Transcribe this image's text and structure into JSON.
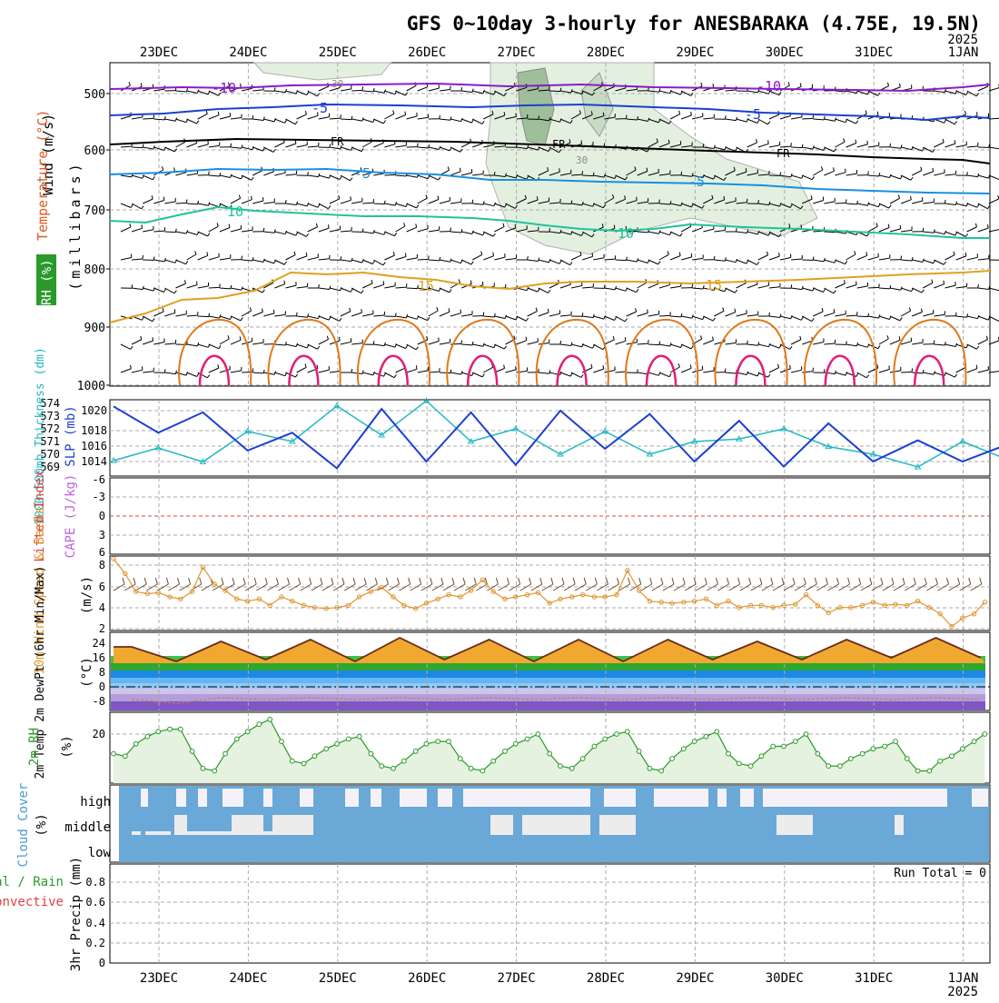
{
  "title": "GFS 0~10day 3-hourly for ANESBARAKA (4.75E, 19.5N)",
  "year_label": "2025",
  "date_labels": [
    "23DEC",
    "24DEC",
    "25DEC",
    "26DEC",
    "27DEC",
    "28DEC",
    "29DEC",
    "30DEC",
    "31DEC",
    "1JAN"
  ],
  "time_range": {
    "start_day": 0,
    "end_day": 10,
    "step_hours": 3
  },
  "colors": {
    "purple": "#8a1ac8",
    "blue": "#1c3fd1",
    "black": "#000000",
    "lightblue": "#1a8fe0",
    "teal": "#1ec39a",
    "orange": "#e0a020",
    "darkorange": "#e07818",
    "magenta": "#e0207a",
    "cyan": "#22b8c0",
    "wind_orange": "#e09530",
    "rh_green": "#2a9a2a",
    "cloud_blue": "#6aa8d8",
    "cloud_white": "#f4f2f8",
    "grid": "#aaaaaa"
  },
  "panels": {
    "upper": {
      "ylabel_unit": "(millibars)",
      "ylabel_wind": "Wind (m/s)",
      "ylabel_temp": "Temperature (°C)",
      "ylabel_rh": "RH (%)",
      "pressure_ticks": [
        "500",
        "600",
        "700",
        "800",
        "900",
        "1000"
      ],
      "isotherm_labels": [
        "-10",
        "-5",
        "FR",
        "-5",
        "10",
        "10",
        "15"
      ],
      "rh_label": "30"
    },
    "slp": {
      "ylabel_left": "1000~500mb Thickness (dm)",
      "ylabel_right": "SLP (mb)",
      "thickness_ticks": [
        "574",
        "573",
        "572",
        "571",
        "570",
        "569"
      ],
      "slp_ticks": [
        "1020",
        "1018",
        "1016",
        "1014"
      ]
    },
    "li": {
      "ylabel_li": "Lifted Index",
      "ylabel_cape": "CAPE (J/kg)",
      "ticks": [
        "-6",
        "-3",
        "0",
        "3",
        "6"
      ]
    },
    "wind10": {
      "ylabel": "10m Wind Speed & Barbs",
      "unit": "(m/s)",
      "ticks": [
        "8",
        "6",
        "4",
        "2"
      ]
    },
    "temp2m": {
      "ylabel": "2m Temp 2m DewPt (6hr Min/Max)",
      "unit": "(°C)",
      "ticks": [
        "24",
        "16",
        "8",
        "0",
        "-8"
      ]
    },
    "rh2m": {
      "ylabel": "2m RH",
      "unit": "(%)",
      "ticks": [
        "20"
      ]
    },
    "cloud": {
      "ylabel": "Cloud Cover",
      "unit": "(%)",
      "levels": [
        "high",
        "middle",
        "low"
      ]
    },
    "precip": {
      "ylabel_total": "Total / Rain",
      "ylabel_conv": "Convective",
      "ylabel_main": "3hr Precip (mm)",
      "ticks": [
        "0.8",
        "0.6",
        "0.4",
        "0.2",
        "0"
      ],
      "run_total": "Run Total = 0"
    }
  },
  "chart_data": [
    {
      "type": "line",
      "title": "10m Wind Speed",
      "ylabel": "10m Wind Speed & Barbs (m/s)",
      "ylim": [
        2,
        9
      ],
      "x_days": [
        0.0,
        0.13,
        0.25,
        0.38,
        0.5,
        0.63,
        0.75,
        0.88,
        1.0,
        1.13,
        1.25,
        1.38,
        1.5,
        1.63,
        1.75,
        1.88,
        2.0,
        2.13,
        2.25,
        2.38,
        2.5,
        2.63,
        2.75,
        2.88,
        3.0,
        3.13,
        3.25,
        3.38,
        3.5,
        3.63,
        3.75,
        3.88,
        4.0,
        4.13,
        4.25,
        4.38,
        4.5,
        4.63,
        4.75,
        4.88,
        5.0,
        5.13,
        5.25,
        5.38,
        5.5,
        5.63,
        5.75,
        5.88,
        6.0,
        6.13,
        6.25,
        6.38,
        6.5,
        6.63,
        6.75,
        6.88,
        7.0,
        7.13,
        7.25,
        7.38,
        7.5,
        7.63,
        7.75,
        7.88,
        8.0,
        8.13,
        8.25,
        8.38,
        8.5,
        8.63,
        8.75,
        8.88,
        9.0,
        9.13,
        9.25,
        9.38,
        9.5,
        9.63,
        9.75
      ],
      "series": [
        {
          "values": [
            8.6,
            7.2,
            5.5,
            5.3,
            5.4,
            5.0,
            4.8,
            5.5,
            7.8,
            6.2,
            5.6,
            4.8,
            4.6,
            4.8,
            4.2,
            5.0,
            4.6,
            4.2,
            4.0,
            3.9,
            4.0,
            4.2,
            5.0,
            5.5,
            5.9,
            5.0,
            4.2,
            3.9,
            4.4,
            4.8,
            5.2,
            5.0,
            5.6,
            6.6,
            5.5,
            4.8,
            5.0,
            5.2,
            5.4,
            4.4,
            4.8,
            5.0,
            5.2,
            5.0,
            5.0,
            5.2,
            7.5,
            5.6,
            4.6,
            4.5,
            4.4,
            4.5,
            4.6,
            4.8,
            4.2,
            4.6,
            4.0,
            4.2,
            4.2,
            4.0,
            4.2,
            4.3,
            5.2,
            4.2,
            3.5,
            4.0,
            4.0,
            4.2,
            4.5,
            4.2,
            4.3,
            4.2,
            4.6,
            4.0,
            3.4,
            2.2,
            3.0,
            3.4,
            4.5
          ]
        }
      ]
    },
    {
      "type": "line",
      "title": "SLP and 1000~500mb Thickness",
      "x_days": [
        0.0,
        0.5,
        1.0,
        1.5,
        2.0,
        2.5,
        3.0,
        3.5,
        4.0,
        4.5,
        5.0,
        5.5,
        6.0,
        6.5,
        7.0,
        7.5,
        8.0,
        8.5,
        9.0,
        9.5,
        10.0
      ],
      "series": [
        {
          "name": "SLP (mb)",
          "values": [
            1020.5,
            1017.4,
            1019.8,
            1015.3,
            1017.4,
            1013.2,
            1020.2,
            1014.0,
            1019.8,
            1013.6,
            1020.0,
            1015.5,
            1019.6,
            1014.0,
            1018.8,
            1013.4,
            1018.5,
            1014.0,
            1016.5,
            1014.0,
            1016.0
          ]
        },
        {
          "name": "1000~500mb Thickness (dm)",
          "values": [
            569.5,
            570.5,
            569.4,
            571.8,
            571.0,
            573.8,
            571.5,
            574.2,
            571.0,
            572.0,
            570.0,
            571.8,
            570.0,
            571.0,
            571.2,
            572.0,
            570.6,
            570.0,
            569.0,
            571.0,
            569.6
          ]
        }
      ]
    },
    {
      "type": "line",
      "title": "2m RH",
      "ylabel": "2m RH (%)",
      "x_days": [
        0.0,
        0.13,
        0.25,
        0.38,
        0.5,
        0.63,
        0.75,
        0.88,
        1.0,
        1.13,
        1.25,
        1.38,
        1.5,
        1.63,
        1.75,
        1.88,
        2.0,
        2.13,
        2.25,
        2.38,
        2.5,
        2.63,
        2.75,
        2.88,
        3.0,
        3.13,
        3.25,
        3.38,
        3.5,
        3.63,
        3.75,
        3.88,
        4.0,
        4.13,
        4.25,
        4.38,
        4.5,
        4.63,
        4.75,
        4.88,
        5.0,
        5.13,
        5.25,
        5.38,
        5.5,
        5.63,
        5.75,
        5.88,
        6.0,
        6.13,
        6.25,
        6.38,
        6.5,
        6.63,
        6.75,
        6.88,
        7.0,
        7.13,
        7.25,
        7.38,
        7.5,
        7.63,
        7.75,
        7.88,
        8.0,
        8.13,
        8.25,
        8.38,
        8.5,
        8.63,
        8.75,
        8.88,
        9.0,
        9.13,
        9.25,
        9.38,
        9.5,
        9.63,
        9.75
      ],
      "series": [
        {
          "values": [
            12,
            11,
            16,
            19,
            21,
            22,
            22,
            13,
            6,
            5,
            12,
            18,
            21,
            24,
            26,
            17,
            9,
            8,
            11,
            14,
            16,
            18,
            19,
            12,
            7,
            6,
            9,
            13,
            16,
            17,
            17,
            10,
            6,
            5,
            9,
            13,
            16,
            18,
            20,
            12,
            7,
            6,
            10,
            15,
            18,
            20,
            21,
            13,
            6,
            5,
            10,
            14,
            17,
            19,
            21,
            12,
            8,
            7,
            11,
            15,
            15,
            17,
            20,
            12,
            7,
            7,
            10,
            12,
            14,
            15,
            17,
            10,
            5,
            5,
            9,
            11,
            14,
            17,
            20
          ]
        }
      ]
    },
    {
      "type": "line",
      "title": "2m Temp",
      "ylabel": "2m Temp (°C)",
      "x_days": [
        0.0,
        0.5,
        1.0,
        1.5,
        2.0,
        2.5,
        3.0,
        3.5,
        4.0,
        4.5,
        5.0,
        5.5,
        6.0,
        6.5,
        7.0,
        7.5,
        8.0,
        8.5,
        9.0,
        9.5
      ],
      "series": [
        {
          "name": "2m Temp",
          "values": [
            22,
            14,
            25,
            15,
            26,
            14,
            27,
            15,
            26,
            14,
            26,
            14,
            26,
            15,
            25,
            15,
            26,
            16,
            27,
            16
          ]
        },
        {
          "name": "2m DewPt",
          "values": [
            -7,
            -9,
            -6,
            -7,
            -6,
            -7,
            -6,
            -7,
            -6,
            -7,
            -6,
            -7,
            -6,
            -7,
            -6,
            -7,
            -6,
            -7,
            -6,
            -7
          ]
        }
      ]
    }
  ]
}
